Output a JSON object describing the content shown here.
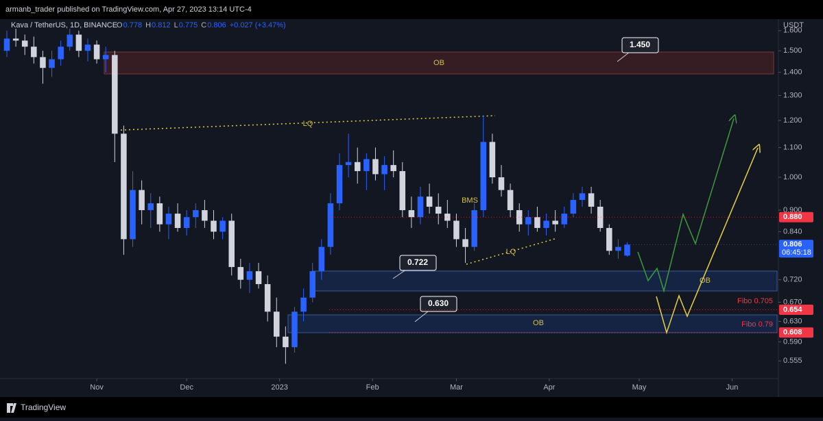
{
  "header": {
    "publisher": "armanb_trader published on TradingView.com, Apr 27, 2023 13:14 UTC-4",
    "brand": "TradingView"
  },
  "chart_data": {
    "type": "candlestick",
    "title": "Kava / TetherUS, 1D, BINANCE",
    "legend": {
      "labels": [
        "O",
        "H",
        "L",
        "C"
      ],
      "values": [
        "0.778",
        "0.812",
        "0.775",
        "0.806"
      ],
      "change": "+0.027 (+3.47%)"
    },
    "y_unit": "USDT",
    "log_scale": true,
    "grid": false,
    "up_color": "#2962ff",
    "down_color": "#d1d4dc",
    "x": [
      0,
      3,
      6,
      9,
      12,
      15,
      18,
      21,
      24,
      27,
      30,
      33,
      36,
      39,
      42,
      45,
      48,
      51,
      54,
      57,
      60,
      63,
      66,
      69,
      72,
      75,
      78,
      81,
      84,
      87,
      90,
      93,
      96,
      99,
      102,
      105,
      108,
      111,
      114,
      117,
      120,
      123,
      126,
      129,
      132,
      135,
      138,
      141,
      144,
      147,
      150,
      153,
      156,
      159,
      162,
      165,
      168,
      171,
      174,
      177,
      180,
      183,
      186,
      189,
      192,
      195,
      198,
      201,
      204,
      207
    ],
    "open": [
      1.5,
      1.56,
      1.55,
      1.52,
      1.47,
      1.42,
      1.46,
      1.52,
      1.58,
      1.5,
      1.53,
      1.46,
      1.48,
      1.15,
      0.82,
      0.96,
      0.9,
      0.92,
      0.86,
      0.89,
      0.85,
      0.88,
      0.9,
      0.87,
      0.84,
      0.87,
      0.75,
      0.72,
      0.74,
      0.71,
      0.65,
      0.6,
      0.58,
      0.65,
      0.68,
      0.74,
      0.8,
      0.92,
      1.04,
      1.05,
      1.02,
      1.06,
      1.01,
      1.04,
      1.02,
      0.9,
      0.88,
      0.94,
      0.91,
      0.89,
      0.87,
      0.82,
      0.8,
      0.9,
      1.12,
      1.0,
      0.96,
      0.9,
      0.86,
      0.88,
      0.85,
      0.87,
      0.86,
      0.89,
      0.93,
      0.95,
      0.91,
      0.85,
      0.79,
      0.778
    ],
    "high": [
      1.6,
      1.61,
      1.58,
      1.57,
      1.5,
      1.5,
      1.55,
      1.61,
      1.6,
      1.56,
      1.55,
      1.52,
      1.5,
      1.18,
      1.02,
      0.99,
      0.95,
      0.94,
      0.91,
      0.92,
      0.9,
      0.92,
      0.93,
      0.9,
      0.88,
      0.89,
      0.77,
      0.76,
      0.76,
      0.73,
      0.68,
      0.62,
      0.66,
      0.7,
      0.76,
      0.82,
      0.95,
      1.08,
      1.15,
      1.1,
      1.08,
      1.1,
      1.07,
      1.09,
      1.05,
      0.94,
      0.97,
      0.98,
      0.95,
      0.93,
      0.89,
      0.85,
      0.92,
      1.22,
      1.15,
      1.04,
      0.98,
      0.92,
      0.9,
      0.91,
      0.89,
      0.9,
      0.91,
      0.95,
      0.97,
      0.97,
      0.93,
      0.86,
      0.82,
      0.812
    ],
    "low": [
      1.47,
      1.52,
      1.48,
      1.44,
      1.35,
      1.38,
      1.43,
      1.5,
      1.47,
      1.45,
      1.44,
      1.4,
      1.05,
      0.78,
      0.8,
      0.86,
      0.85,
      0.84,
      0.82,
      0.84,
      0.83,
      0.85,
      0.85,
      0.82,
      0.82,
      0.73,
      0.7,
      0.69,
      0.7,
      0.63,
      0.58,
      0.55,
      0.57,
      0.63,
      0.67,
      0.72,
      0.78,
      0.9,
      1.0,
      0.98,
      0.96,
      0.99,
      0.96,
      1.0,
      0.88,
      0.85,
      0.86,
      0.89,
      0.86,
      0.85,
      0.8,
      0.76,
      0.79,
      0.88,
      0.98,
      0.94,
      0.88,
      0.84,
      0.83,
      0.84,
      0.83,
      0.84,
      0.85,
      0.88,
      0.91,
      0.89,
      0.84,
      0.78,
      0.77,
      0.775
    ],
    "close": [
      1.56,
      1.55,
      1.52,
      1.47,
      1.42,
      1.46,
      1.52,
      1.58,
      1.5,
      1.53,
      1.46,
      1.48,
      1.15,
      0.82,
      0.96,
      0.9,
      0.92,
      0.86,
      0.89,
      0.85,
      0.88,
      0.9,
      0.87,
      0.84,
      0.87,
      0.75,
      0.72,
      0.74,
      0.71,
      0.65,
      0.6,
      0.58,
      0.65,
      0.68,
      0.74,
      0.8,
      0.92,
      1.04,
      1.05,
      1.02,
      1.06,
      1.01,
      1.04,
      1.02,
      0.9,
      0.88,
      0.94,
      0.91,
      0.89,
      0.87,
      0.82,
      0.8,
      0.9,
      1.12,
      1.0,
      0.96,
      0.9,
      0.86,
      0.88,
      0.85,
      0.87,
      0.86,
      0.89,
      0.93,
      0.95,
      0.91,
      0.85,
      0.79,
      0.8,
      0.806
    ],
    "xlim": [
      0,
      257
    ],
    "xticks": [
      {
        "value": 30,
        "label": "Nov"
      },
      {
        "value": 60,
        "label": "Dec"
      },
      {
        "value": 91,
        "label": "2023"
      },
      {
        "value": 122,
        "label": "Feb"
      },
      {
        "value": 150,
        "label": "Mar"
      },
      {
        "value": 181,
        "label": "Apr"
      },
      {
        "value": 211,
        "label": "May"
      },
      {
        "value": 242,
        "label": "Jun"
      }
    ],
    "ylim": [
      0.528,
      1.617
    ],
    "yticks": [
      {
        "value": 1.6,
        "label": "1.600"
      },
      {
        "value": 1.5,
        "label": "1.500"
      },
      {
        "value": 1.4,
        "label": "1.400"
      },
      {
        "value": 1.3,
        "label": "1.300"
      },
      {
        "value": 1.2,
        "label": "1.200"
      },
      {
        "value": 1.1,
        "label": "1.100"
      },
      {
        "value": 1.0,
        "label": "1.000"
      },
      {
        "value": 0.9,
        "label": "0.900"
      },
      {
        "value": 0.84,
        "label": "0.840"
      },
      {
        "value": 0.72,
        "label": "0.720"
      },
      {
        "value": 0.67,
        "label": "0.670"
      },
      {
        "value": 0.63,
        "label": "0.630"
      },
      {
        "value": 0.59,
        "label": "0.590"
      },
      {
        "value": 0.555,
        "label": "0.555"
      }
    ],
    "price_marks": [
      {
        "value": 0.88,
        "label": "0.880",
        "color": "#f23645"
      },
      {
        "value": 0.806,
        "label": "0.806",
        "color": "#2962ff",
        "countdown": "06:45:18"
      },
      {
        "value": 0.654,
        "label": "0.654",
        "color": "#f23645"
      },
      {
        "value": 0.608,
        "label": "0.608",
        "color": "#f23645"
      }
    ],
    "annotations": {
      "ob": [
        "OB",
        "OB",
        "OB"
      ],
      "lq": [
        "LQ",
        "LQ"
      ],
      "bms": "BMS",
      "callouts": [
        "1.450",
        "0.722",
        "0.630"
      ],
      "fibo": [
        "Fibo 0.705",
        "Fibo 0.79"
      ]
    }
  }
}
